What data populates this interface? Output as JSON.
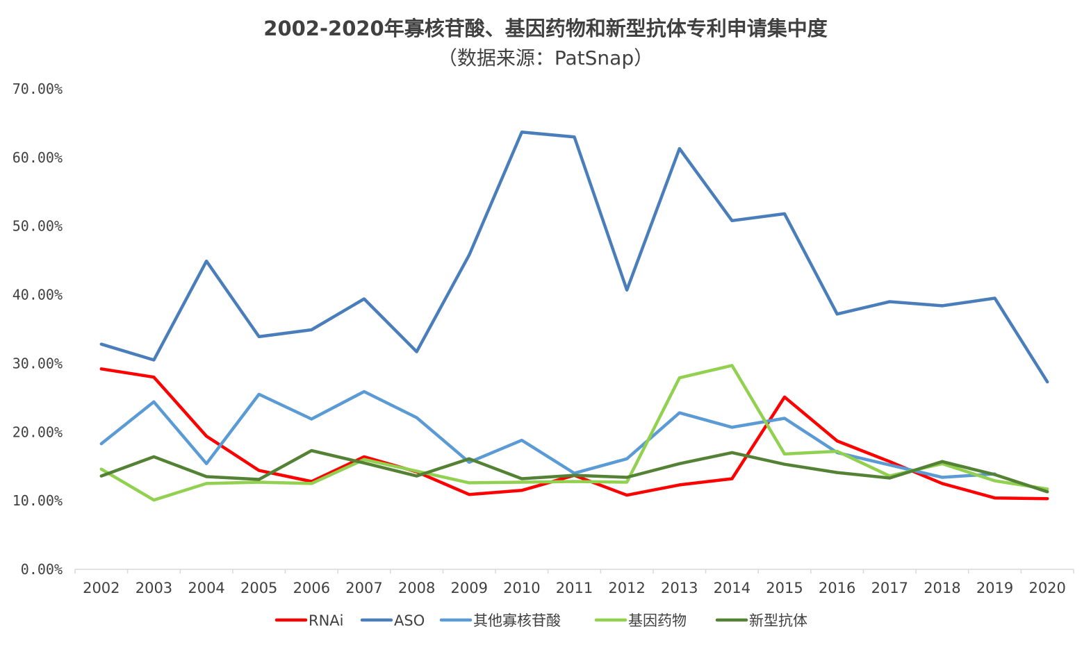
{
  "chart_data": {
    "type": "line",
    "title": "2002-2020年寡核苷酸、基因药物和新型抗体专利申请集中度",
    "subtitle": "（数据来源：PatSnap）",
    "xlabel": "",
    "ylabel": "",
    "ylim": [
      0,
      70
    ],
    "yticks": [
      "0.00%",
      "10.00%",
      "20.00%",
      "30.00%",
      "40.00%",
      "50.00%",
      "60.00%",
      "70.00%"
    ],
    "grid": false,
    "legend_position": "bottom",
    "categories": [
      "2002",
      "2003",
      "2004",
      "2005",
      "2006",
      "2007",
      "2008",
      "2009",
      "2010",
      "2011",
      "2012",
      "2013",
      "2014",
      "2015",
      "2016",
      "2017",
      "2018",
      "2019",
      "2020"
    ],
    "series": [
      {
        "name": "RNAi",
        "color": "#ff0000",
        "values": [
          29.2,
          28.0,
          19.4,
          14.4,
          12.8,
          16.4,
          14.2,
          10.9,
          11.5,
          13.7,
          10.8,
          12.3,
          13.2,
          25.1,
          18.7,
          15.7,
          12.5,
          10.4,
          10.3
        ]
      },
      {
        "name": "ASO",
        "color": "#4a7ebb",
        "values": [
          32.8,
          30.5,
          44.9,
          33.9,
          34.9,
          39.4,
          31.7,
          45.8,
          63.7,
          63.0,
          40.7,
          61.3,
          50.8,
          51.8,
          37.2,
          39.0,
          38.4,
          39.5,
          27.3
        ]
      },
      {
        "name": "其他寡核苷酸",
        "color": "#5b9bd5",
        "values": [
          18.3,
          24.4,
          15.4,
          25.5,
          21.9,
          25.9,
          22.1,
          15.6,
          18.8,
          14.0,
          16.1,
          22.8,
          20.7,
          22.0,
          17.0,
          15.2,
          13.4,
          13.9,
          null
        ]
      },
      {
        "name": "基因药物",
        "color": "#92d050",
        "values": [
          14.6,
          10.1,
          12.5,
          12.7,
          12.5,
          16.0,
          14.3,
          12.6,
          12.7,
          12.8,
          12.7,
          27.9,
          29.7,
          16.8,
          17.2,
          13.6,
          15.4,
          12.9,
          11.7
        ]
      },
      {
        "name": "新型抗体",
        "color": "#548235",
        "values": [
          13.6,
          16.4,
          13.5,
          13.1,
          17.3,
          15.5,
          13.6,
          16.1,
          13.2,
          13.7,
          13.4,
          15.4,
          17.0,
          15.3,
          14.1,
          13.3,
          15.7,
          13.8,
          11.3
        ]
      }
    ]
  }
}
